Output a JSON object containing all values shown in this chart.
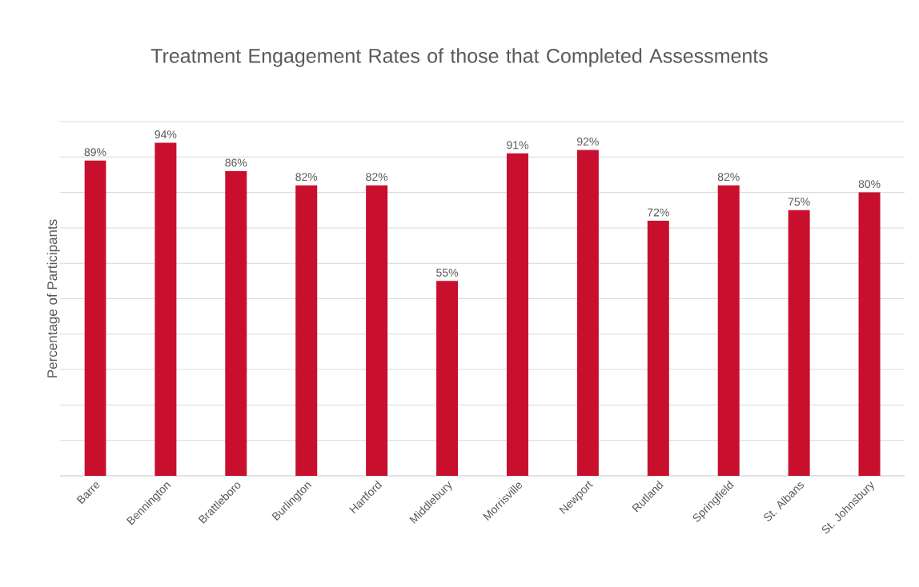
{
  "chart_data": {
    "type": "bar",
    "title": "Treatment Engagement Rates of those that Completed Assessments",
    "ylabel": "Percentage of Participants",
    "categories": [
      "Barre",
      "Bennington",
      "Brattleboro",
      "Burlington",
      "Hartford",
      "Middlebury",
      "Morrisville",
      "Newport",
      "Rutland",
      "Springfield",
      "St. Albans",
      "St. Johnsbury"
    ],
    "values": [
      89,
      94,
      86,
      82,
      82,
      55,
      91,
      92,
      72,
      82,
      75,
      80
    ],
    "value_labels": [
      "89%",
      "94%",
      "86%",
      "82%",
      "82%",
      "55%",
      "91%",
      "92%",
      "72%",
      "82%",
      "75%",
      "80%"
    ],
    "color": "#c8102e",
    "ylim": [
      0,
      100
    ],
    "yticks": [
      {
        "value": 0,
        "label": null
      },
      {
        "value": 10,
        "label": null
      },
      {
        "value": 20,
        "label": null
      },
      {
        "value": 30,
        "label": null
      },
      {
        "value": 40,
        "label": null
      },
      {
        "value": 50,
        "label": null
      },
      {
        "value": 60,
        "label": null
      },
      {
        "value": 70,
        "label": null
      },
      {
        "value": 80,
        "label": null
      },
      {
        "value": 90,
        "label": null
      },
      {
        "value": 100,
        "label": null
      }
    ],
    "grid": "y",
    "tick_labels": "x"
  }
}
